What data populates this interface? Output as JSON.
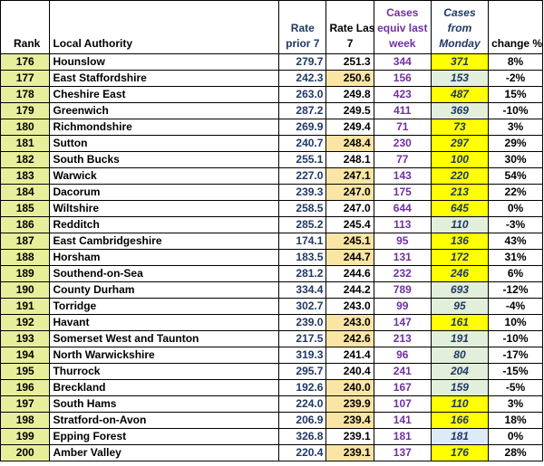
{
  "header": {
    "rank": "Rank",
    "local_authority": "Local Authority",
    "rate_prior": [
      "Rate",
      "prior 7"
    ],
    "rate_last": [
      "Rate Last",
      "7"
    ],
    "cases_equiv": [
      "Cases",
      "equiv last",
      "week"
    ],
    "cases_monday": [
      "Cases",
      "from",
      "Monday"
    ],
    "change": "change %"
  },
  "colors": {
    "rank_bg": "#e8ef9b",
    "rate_last_highlight": "#fbe5a5",
    "monday_yellow": "#ffff00",
    "monday_green": "#e2efda",
    "monday_blue": "#ddebf7",
    "rate_text": "#1f3864",
    "cases_text": "#7030a0"
  },
  "rows": [
    {
      "rank": "176",
      "la": "Hounslow",
      "prior": "279.7",
      "last": "251.3",
      "last_hl": false,
      "cases": "344",
      "monday": "371",
      "mon_color": "yellow",
      "change": "8%"
    },
    {
      "rank": "177",
      "la": "East Staffordshire",
      "prior": "242.3",
      "last": "250.6",
      "last_hl": true,
      "cases": "156",
      "monday": "153",
      "mon_color": "green",
      "change": "-2%"
    },
    {
      "rank": "178",
      "la": "Cheshire East",
      "prior": "263.0",
      "last": "249.8",
      "last_hl": false,
      "cases": "423",
      "monday": "487",
      "mon_color": "yellow",
      "change": "15%"
    },
    {
      "rank": "179",
      "la": "Greenwich",
      "prior": "287.2",
      "last": "249.5",
      "last_hl": false,
      "cases": "411",
      "monday": "369",
      "mon_color": "green",
      "change": "-10%"
    },
    {
      "rank": "180",
      "la": "Richmondshire",
      "prior": "269.9",
      "last": "249.4",
      "last_hl": false,
      "cases": "71",
      "monday": "73",
      "mon_color": "yellow",
      "change": "3%"
    },
    {
      "rank": "181",
      "la": "Sutton",
      "prior": "240.7",
      "last": "248.4",
      "last_hl": true,
      "cases": "230",
      "monday": "297",
      "mon_color": "yellow",
      "change": "29%"
    },
    {
      "rank": "182",
      "la": "South Bucks",
      "prior": "255.1",
      "last": "248.1",
      "last_hl": false,
      "cases": "77",
      "monday": "100",
      "mon_color": "yellow",
      "change": "30%"
    },
    {
      "rank": "183",
      "la": "Warwick",
      "prior": "227.0",
      "last": "247.1",
      "last_hl": true,
      "cases": "143",
      "monday": "220",
      "mon_color": "yellow",
      "change": "54%"
    },
    {
      "rank": "184",
      "la": "Dacorum",
      "prior": "239.3",
      "last": "247.0",
      "last_hl": true,
      "cases": "175",
      "monday": "213",
      "mon_color": "yellow",
      "change": "22%"
    },
    {
      "rank": "185",
      "la": "Wiltshire",
      "prior": "258.5",
      "last": "247.0",
      "last_hl": false,
      "cases": "644",
      "monday": "645",
      "mon_color": "yellow",
      "change": "0%"
    },
    {
      "rank": "186",
      "la": "Redditch",
      "prior": "285.2",
      "last": "245.4",
      "last_hl": false,
      "cases": "113",
      "monday": "110",
      "mon_color": "green",
      "change": "-3%"
    },
    {
      "rank": "187",
      "la": "East Cambridgeshire",
      "prior": "174.1",
      "last": "245.1",
      "last_hl": true,
      "cases": "95",
      "monday": "136",
      "mon_color": "yellow",
      "change": "43%"
    },
    {
      "rank": "188",
      "la": "Horsham",
      "prior": "183.5",
      "last": "244.7",
      "last_hl": true,
      "cases": "131",
      "monday": "172",
      "mon_color": "yellow",
      "change": "31%"
    },
    {
      "rank": "189",
      "la": "Southend-on-Sea",
      "prior": "281.2",
      "last": "244.6",
      "last_hl": false,
      "cases": "232",
      "monday": "246",
      "mon_color": "yellow",
      "change": "6%"
    },
    {
      "rank": "190",
      "la": "County Durham",
      "prior": "334.4",
      "last": "244.2",
      "last_hl": false,
      "cases": "789",
      "monday": "693",
      "mon_color": "green",
      "change": "-12%"
    },
    {
      "rank": "191",
      "la": "Torridge",
      "prior": "302.7",
      "last": "243.0",
      "last_hl": false,
      "cases": "99",
      "monday": "95",
      "mon_color": "green",
      "change": "-4%"
    },
    {
      "rank": "192",
      "la": "Havant",
      "prior": "239.0",
      "last": "243.0",
      "last_hl": true,
      "cases": "147",
      "monday": "161",
      "mon_color": "yellow",
      "change": "10%"
    },
    {
      "rank": "193",
      "la": "Somerset West and Taunton",
      "prior": "217.5",
      "last": "242.6",
      "last_hl": true,
      "cases": "213",
      "monday": "191",
      "mon_color": "green",
      "change": "-10%"
    },
    {
      "rank": "194",
      "la": "North Warwickshire",
      "prior": "319.3",
      "last": "241.4",
      "last_hl": false,
      "cases": "96",
      "monday": "80",
      "mon_color": "green",
      "change": "-17%"
    },
    {
      "rank": "195",
      "la": "Thurrock",
      "prior": "295.7",
      "last": "240.4",
      "last_hl": false,
      "cases": "241",
      "monday": "204",
      "mon_color": "green",
      "change": "-15%"
    },
    {
      "rank": "196",
      "la": "Breckland",
      "prior": "192.6",
      "last": "240.0",
      "last_hl": true,
      "cases": "167",
      "monday": "159",
      "mon_color": "green",
      "change": "-5%"
    },
    {
      "rank": "197",
      "la": "South Hams",
      "prior": "224.0",
      "last": "239.9",
      "last_hl": true,
      "cases": "107",
      "monday": "110",
      "mon_color": "yellow",
      "change": "3%"
    },
    {
      "rank": "198",
      "la": "Stratford-on-Avon",
      "prior": "206.9",
      "last": "239.4",
      "last_hl": true,
      "cases": "141",
      "monday": "166",
      "mon_color": "yellow",
      "change": "18%"
    },
    {
      "rank": "199",
      "la": "Epping Forest",
      "prior": "326.8",
      "last": "239.1",
      "last_hl": false,
      "cases": "181",
      "monday": "181",
      "mon_color": "blue",
      "change": "0%"
    },
    {
      "rank": "200",
      "la": "Amber Valley",
      "prior": "220.4",
      "last": "239.1",
      "last_hl": true,
      "cases": "137",
      "monday": "176",
      "mon_color": "yellow",
      "change": "28%"
    }
  ]
}
